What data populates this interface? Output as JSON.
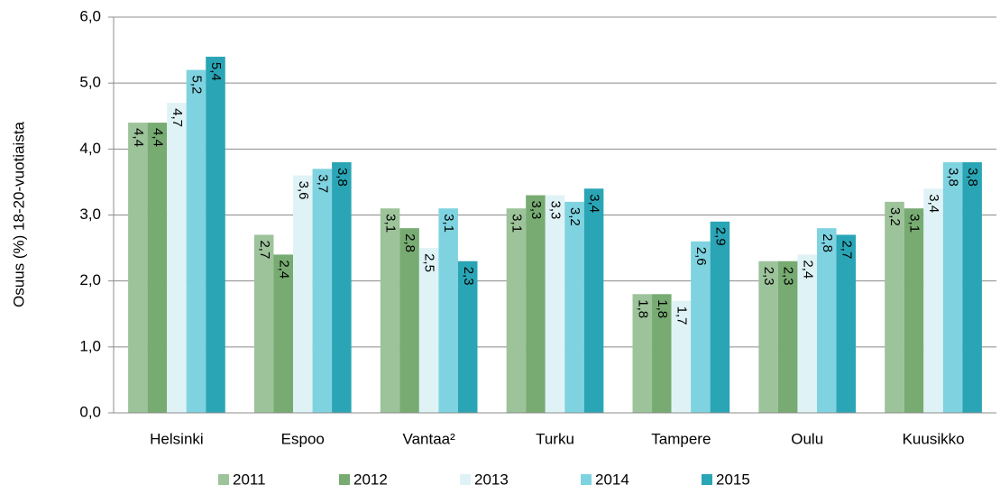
{
  "chart_data": {
    "type": "bar",
    "ylabel": "Osuus (%) 18-20-vuotiaista",
    "categories": [
      "Helsinki",
      "Espoo",
      "Vantaa²",
      "Turku",
      "Tampere",
      "Oulu",
      "Kuusikko"
    ],
    "series": [
      {
        "name": "2011",
        "color": "#9dc39a",
        "values": [
          4.4,
          2.7,
          3.1,
          3.1,
          1.8,
          2.3,
          3.2
        ],
        "value_labels": [
          "4,4",
          "2,7",
          "3,1",
          "3,1",
          "1,8",
          "2,3",
          "3,2"
        ]
      },
      {
        "name": "2012",
        "color": "#77ab72",
        "values": [
          4.4,
          2.4,
          2.8,
          3.3,
          1.8,
          2.3,
          3.1
        ],
        "value_labels": [
          "4,4",
          "2,4",
          "2,8",
          "3,3",
          "1,8",
          "2,3",
          "3,1"
        ]
      },
      {
        "name": "2013",
        "color": "#dff3f7",
        "values": [
          4.7,
          3.6,
          2.5,
          3.3,
          1.7,
          2.4,
          3.4
        ],
        "value_labels": [
          "4,7",
          "3,6",
          "2,5",
          "3,3",
          "1,7",
          "2,4",
          "3,4"
        ]
      },
      {
        "name": "2014",
        "color": "#7fd3e0",
        "values": [
          5.2,
          3.7,
          3.1,
          3.2,
          2.6,
          2.8,
          3.8
        ],
        "value_labels": [
          "5,2",
          "3,7",
          "3,1",
          "3,2",
          "2,6",
          "2,8",
          "3,8"
        ]
      },
      {
        "name": "2015",
        "color": "#2aa5b5",
        "values": [
          5.4,
          3.8,
          2.3,
          3.4,
          2.9,
          2.7,
          3.8
        ],
        "value_labels": [
          "5,4",
          "3,8",
          "2,3",
          "3,4",
          "2,9",
          "2,7",
          "3,8"
        ]
      }
    ],
    "ylim": [
      0,
      6
    ],
    "yticks": [
      {
        "value": 0,
        "label": "0,0"
      },
      {
        "value": 1,
        "label": "1,0"
      },
      {
        "value": 2,
        "label": "2,0"
      },
      {
        "value": 3,
        "label": "3,0"
      },
      {
        "value": 4,
        "label": "4,0"
      },
      {
        "value": 5,
        "label": "5,0"
      },
      {
        "value": 6,
        "label": "6,0"
      }
    ],
    "grid": true,
    "legend": "bottom"
  }
}
